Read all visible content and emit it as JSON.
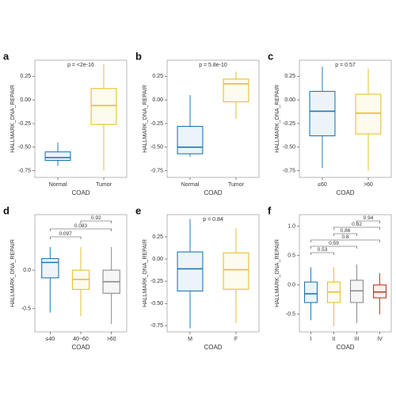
{
  "chart_data": [
    {
      "type": "box",
      "letter": "a",
      "annotation": "p = <2e-16",
      "ylabel": "HALLMARK_DNA_REPAIR",
      "xlabel": "COAD",
      "categories": [
        "Normal",
        "Tumor"
      ],
      "colors": [
        "#1f78b4",
        "#e6c229"
      ],
      "ylim": [
        -0.82,
        0.42
      ],
      "yticks": [
        {
          "value": -0.75,
          "label": "-0.75"
        },
        {
          "value": -0.5,
          "label": "-0.50"
        },
        -0.25,
        {
          "value": 0,
          "label": "0.00"
        },
        0.25
      ],
      "boxes": [
        {
          "min": -0.7,
          "q1": -0.64,
          "median": -0.61,
          "q3": -0.55,
          "max": -0.45
        },
        {
          "min": -0.75,
          "q1": -0.26,
          "median": -0.06,
          "q3": 0.12,
          "max": 0.38
        }
      ]
    },
    {
      "type": "box",
      "letter": "b",
      "annotation": "p = 5.8e-10",
      "ylabel": "HALLMARK_DNA_REPAIR",
      "xlabel": "COAD",
      "categories": [
        "Normal",
        "Tumor"
      ],
      "colors": [
        "#1f78b4",
        "#e6c229"
      ],
      "ylim": [
        -0.82,
        0.42
      ],
      "yticks": [
        {
          "value": -0.75,
          "label": "-0.75"
        },
        {
          "value": -0.5,
          "label": "-0.50"
        },
        -0.25,
        {
          "value": 0,
          "label": "0.00"
        },
        0.25
      ],
      "boxes": [
        {
          "min": -0.6,
          "q1": -0.57,
          "median": -0.5,
          "q3": -0.28,
          "max": 0.05
        },
        {
          "min": -0.2,
          "q1": -0.02,
          "median": 0.17,
          "q3": 0.22,
          "max": 0.3
        }
      ]
    },
    {
      "type": "box",
      "letter": "c",
      "annotation": "p = 0.57",
      "ylabel": "HALLMARK_DNA_REPAIR",
      "xlabel": "COAD",
      "categories": [
        "≤60",
        ">60"
      ],
      "colors": [
        "#1f78b4",
        "#e6c229"
      ],
      "ylim": [
        -0.82,
        0.42
      ],
      "yticks": [
        {
          "value": -0.75,
          "label": "-0.75"
        },
        {
          "value": -0.5,
          "label": "-0.50"
        },
        -0.25,
        {
          "value": 0,
          "label": "0.00"
        },
        0.25
      ],
      "boxes": [
        {
          "min": -0.72,
          "q1": -0.38,
          "median": -0.12,
          "q3": 0.09,
          "max": 0.35
        },
        {
          "min": -0.75,
          "q1": -0.36,
          "median": -0.14,
          "q3": 0.06,
          "max": 0.33
        }
      ]
    },
    {
      "type": "box",
      "letter": "d",
      "ylabel": "HALLMARK_DNA_REPAIR",
      "xlabel": "COAD",
      "categories": [
        "≤40",
        "40~60",
        ">60"
      ],
      "colors": [
        "#1f78b4",
        "#e6c229",
        "#8c8c8c"
      ],
      "ylim": [
        -0.8,
        0.72
      ],
      "yticks": [
        -0.5,
        {
          "value": 0,
          "label": "0.0"
        }
      ],
      "comparisons": [
        "0.097",
        "0.083",
        "0.92"
      ],
      "boxes": [
        {
          "min": -0.55,
          "q1": -0.1,
          "median": 0.1,
          "q3": 0.15,
          "max": 0.3
        },
        {
          "min": -0.6,
          "q1": -0.25,
          "median": -0.12,
          "q3": 0.0,
          "max": 0.3
        },
        {
          "min": -0.7,
          "q1": -0.3,
          "median": -0.15,
          "q3": 0.0,
          "max": 0.3
        }
      ]
    },
    {
      "type": "box",
      "letter": "e",
      "annotation": "p = 0.84",
      "ylabel": "HALLMARK_DNA_REPAIR",
      "xlabel": "COAD",
      "categories": [
        "M",
        "F"
      ],
      "colors": [
        "#1f78b4",
        "#e6c229"
      ],
      "ylim": [
        -0.82,
        0.5
      ],
      "yticks": [
        {
          "value": -0.75,
          "label": "-0.75"
        },
        {
          "value": -0.5,
          "label": "-0.50"
        },
        -0.25,
        {
          "value": 0,
          "label": "0.00"
        },
        0.25
      ],
      "boxes": [
        {
          "min": -0.78,
          "q1": -0.36,
          "median": -0.11,
          "q3": 0.08,
          "max": 0.45
        },
        {
          "min": -0.72,
          "q1": -0.34,
          "median": -0.12,
          "q3": 0.07,
          "max": 0.35
        }
      ]
    },
    {
      "type": "box",
      "letter": "f",
      "ylabel": "HALLMARK_DNA_REPAIR",
      "xlabel": "COAD",
      "categories": [
        "I",
        "II",
        "III",
        "IV"
      ],
      "colors": [
        "#1f78b4",
        "#e6c229",
        "#8c8c8c",
        "#c0392b"
      ],
      "ylim": [
        -0.8,
        1.2
      ],
      "yticks": [
        -0.5,
        {
          "value": 0,
          "label": "0.0"
        },
        0.5,
        {
          "value": 1,
          "label": "1.0"
        }
      ],
      "comparisons": [
        "0.53",
        "0.59",
        "0.8",
        "0.86",
        "0.82",
        "0.94"
      ],
      "boxes": [
        {
          "min": -0.6,
          "q1": -0.3,
          "median": -0.15,
          "q3": 0.05,
          "max": 0.3
        },
        {
          "min": -0.7,
          "q1": -0.3,
          "median": -0.12,
          "q3": 0.05,
          "max": 0.3
        },
        {
          "min": -0.65,
          "q1": -0.3,
          "median": -0.1,
          "q3": 0.08,
          "max": 0.35
        },
        {
          "min": -0.5,
          "q1": -0.22,
          "median": -0.12,
          "q3": 0.0,
          "max": 0.2
        }
      ]
    }
  ]
}
